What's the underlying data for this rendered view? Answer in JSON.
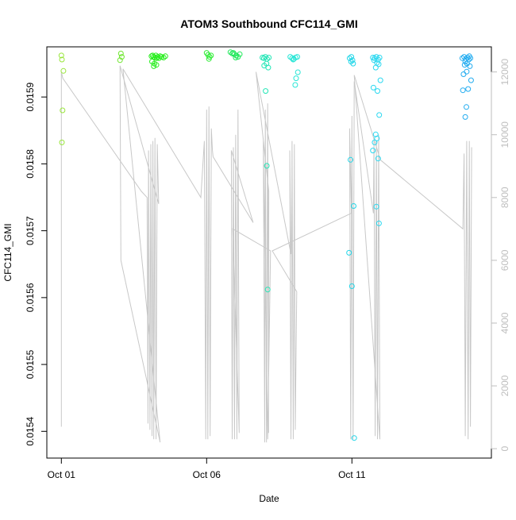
{
  "chart_data": {
    "type": "scatter",
    "title": "ATOM3 Southbound CFC114_GMI",
    "xlabel": "Date",
    "ylabel": "CFC114_GMI",
    "x_ticks": [
      {
        "day": 1,
        "label": "Oct 01"
      },
      {
        "day": 6,
        "label": "Oct 06"
      },
      {
        "day": 11,
        "label": "Oct 11"
      }
    ],
    "xlim_days": [
      0.5,
      15.8
    ],
    "y_left": {
      "lim": [
        0.01536,
        0.015975
      ],
      "ticks": [
        0.0154,
        0.0155,
        0.0156,
        0.0157,
        0.0158,
        0.0159
      ],
      "tick_labels": [
        "0.0154",
        "0.0155",
        "0.0156",
        "0.0157",
        "0.0158",
        "0.0159"
      ]
    },
    "y_right": {
      "lim": [
        -300,
        12800
      ],
      "ticks": [
        0,
        2000,
        4000,
        6000,
        8000,
        10000,
        12000
      ],
      "tick_labels": [
        "0",
        "2000",
        "4000",
        "6000",
        "8000",
        "10000",
        "12000"
      ],
      "color": "#bebebe"
    },
    "grid": false,
    "point_series": [
      {
        "color": "#99e63b",
        "points": [
          [
            1.0,
            0.015962
          ],
          [
            1.02,
            0.015956
          ],
          [
            1.07,
            0.015939
          ],
          [
            1.04,
            0.01588
          ],
          [
            1.02,
            0.015832
          ]
        ]
      },
      {
        "color": "#6ee62e",
        "points": [
          [
            3.05,
            0.015965
          ],
          [
            3.08,
            0.01596
          ],
          [
            3.02,
            0.015955
          ]
        ]
      },
      {
        "color": "#29ee1f",
        "points": [
          [
            4.1,
            0.015961
          ],
          [
            4.14,
            0.015962
          ],
          [
            4.18,
            0.01596
          ],
          [
            4.22,
            0.015959
          ],
          [
            4.25,
            0.015962
          ],
          [
            4.28,
            0.015958
          ],
          [
            4.32,
            0.01596
          ],
          [
            4.36,
            0.015958
          ],
          [
            4.4,
            0.015961
          ],
          [
            4.45,
            0.01596
          ],
          [
            4.52,
            0.015959
          ],
          [
            4.58,
            0.015961
          ],
          [
            4.12,
            0.015953
          ],
          [
            4.2,
            0.01595
          ],
          [
            4.27,
            0.015948
          ],
          [
            4.18,
            0.015946
          ]
        ]
      },
      {
        "color": "#2eec35",
        "points": [
          [
            6.0,
            0.015966
          ],
          [
            6.05,
            0.015963
          ],
          [
            6.1,
            0.01596
          ],
          [
            6.15,
            0.015962
          ],
          [
            6.08,
            0.015957
          ]
        ]
      },
      {
        "color": "#20e85a",
        "points": [
          [
            6.82,
            0.015967
          ],
          [
            6.88,
            0.015965
          ],
          [
            6.95,
            0.015964
          ],
          [
            7.02,
            0.015962
          ],
          [
            7.08,
            0.01596
          ],
          [
            7.14,
            0.015964
          ],
          [
            6.92,
            0.015966
          ],
          [
            7.0,
            0.015959
          ]
        ]
      },
      {
        "color": "#23e6b6",
        "points": [
          [
            7.92,
            0.015959
          ],
          [
            7.97,
            0.015958
          ],
          [
            8.02,
            0.01596
          ],
          [
            8.08,
            0.015957
          ],
          [
            8.14,
            0.015959
          ],
          [
            8.06,
            0.01595
          ],
          [
            7.98,
            0.015947
          ],
          [
            8.12,
            0.015944
          ],
          [
            8.03,
            0.015909
          ],
          [
            8.07,
            0.015797
          ],
          [
            8.1,
            0.015612
          ]
        ]
      },
      {
        "color": "#29e6d6",
        "points": [
          [
            8.88,
            0.01596
          ],
          [
            8.94,
            0.015958
          ],
          [
            9.0,
            0.015957
          ],
          [
            9.06,
            0.015959
          ],
          [
            9.12,
            0.01596
          ],
          [
            8.98,
            0.015956
          ],
          [
            9.14,
            0.015937
          ],
          [
            9.08,
            0.015928
          ],
          [
            9.05,
            0.015918
          ]
        ]
      },
      {
        "color": "#22d6e8",
        "points": [
          [
            10.92,
            0.015958
          ],
          [
            10.98,
            0.01596
          ],
          [
            11.02,
            0.015955
          ],
          [
            10.97,
            0.015953
          ],
          [
            11.04,
            0.01595
          ],
          [
            10.95,
            0.015806
          ],
          [
            11.06,
            0.015737
          ],
          [
            10.9,
            0.015667
          ],
          [
            11.0,
            0.015617
          ],
          [
            11.08,
            0.01539
          ]
        ]
      },
      {
        "color": "#2ad8f0",
        "points": [
          [
            11.72,
            0.015959
          ],
          [
            11.78,
            0.015958
          ],
          [
            11.84,
            0.01596
          ],
          [
            11.9,
            0.015956
          ],
          [
            11.95,
            0.015959
          ],
          [
            11.76,
            0.015955
          ],
          [
            11.86,
            0.015951
          ],
          [
            11.92,
            0.015949
          ],
          [
            11.82,
            0.015944
          ],
          [
            11.98,
            0.015925
          ],
          [
            11.74,
            0.015914
          ],
          [
            11.88,
            0.015909
          ],
          [
            11.94,
            0.015873
          ],
          [
            11.82,
            0.015844
          ],
          [
            11.86,
            0.015838
          ],
          [
            11.78,
            0.015832
          ],
          [
            11.72,
            0.01582
          ],
          [
            11.9,
            0.015808
          ],
          [
            11.84,
            0.015736
          ],
          [
            11.93,
            0.015711
          ]
        ]
      },
      {
        "color": "#22acf0",
        "points": [
          [
            14.8,
            0.015958
          ],
          [
            14.86,
            0.01596
          ],
          [
            14.92,
            0.015957
          ],
          [
            14.98,
            0.015959
          ],
          [
            15.04,
            0.015961
          ],
          [
            15.08,
            0.015958
          ],
          [
            15.02,
            0.015956
          ],
          [
            14.9,
            0.015953
          ],
          [
            14.96,
            0.01595
          ],
          [
            14.88,
            0.015948
          ],
          [
            15.06,
            0.015946
          ],
          [
            14.95,
            0.015938
          ],
          [
            14.84,
            0.015934
          ],
          [
            15.1,
            0.015925
          ],
          [
            15.0,
            0.015912
          ],
          [
            14.82,
            0.01591
          ],
          [
            14.94,
            0.015885
          ],
          [
            14.9,
            0.01587
          ]
        ]
      }
    ],
    "altitude_series": {
      "name": "altitude",
      "color": "#c8c8c8",
      "points": [
        [
          1.0,
          700
        ],
        [
          1.0,
          12000
        ],
        [
          1.05,
          11800
        ],
        [
          3.75,
          8200
        ],
        [
          3.95,
          8000
        ],
        [
          3.98,
          800
        ],
        [
          4.0,
          9500
        ],
        [
          4.05,
          600
        ],
        [
          4.08,
          9700
        ],
        [
          4.12,
          400
        ],
        [
          4.15,
          9800
        ],
        [
          4.18,
          300
        ],
        [
          4.22,
          9900
        ],
        [
          4.26,
          300
        ],
        [
          4.3,
          9700
        ],
        [
          4.35,
          7800
        ],
        [
          3.02,
          12200
        ],
        [
          3.05,
          6000
        ],
        [
          4.4,
          200
        ],
        [
          3.12,
          12100
        ],
        [
          5.8,
          8000
        ],
        [
          5.92,
          9800
        ],
        [
          5.97,
          300
        ],
        [
          6.0,
          10800
        ],
        [
          6.04,
          300
        ],
        [
          6.08,
          10900
        ],
        [
          6.12,
          400
        ],
        [
          6.16,
          10200
        ],
        [
          6.2,
          9500
        ],
        [
          6.22,
          9300
        ],
        [
          7.6,
          7200
        ],
        [
          6.85,
          9500
        ],
        [
          6.88,
          300
        ],
        [
          6.92,
          9600
        ],
        [
          6.96,
          300
        ],
        [
          7.0,
          10000
        ],
        [
          7.04,
          300
        ],
        [
          7.08,
          10800
        ],
        [
          7.12,
          500
        ],
        [
          6.9,
          7000
        ],
        [
          8.2,
          6300
        ],
        [
          8.1,
          300
        ],
        [
          7.95,
          9800
        ],
        [
          8.0,
          200
        ],
        [
          8.02,
          10800
        ],
        [
          8.06,
          200
        ],
        [
          8.1,
          11000
        ],
        [
          8.13,
          500
        ],
        [
          8.14,
          8200
        ],
        [
          7.7,
          12000
        ],
        [
          8.9,
          6200
        ],
        [
          8.86,
          9500
        ],
        [
          8.9,
          300
        ],
        [
          8.94,
          9800
        ],
        [
          8.98,
          300
        ],
        [
          9.02,
          9700
        ],
        [
          9.05,
          600
        ],
        [
          9.1,
          5000
        ],
        [
          8.26,
          6300
        ],
        [
          10.98,
          7500
        ],
        [
          10.92,
          10200
        ],
        [
          10.96,
          300
        ],
        [
          11.0,
          10600
        ],
        [
          11.04,
          300
        ],
        [
          11.08,
          11700
        ],
        [
          11.74,
          7500
        ],
        [
          11.76,
          9800
        ],
        [
          11.8,
          400
        ],
        [
          11.84,
          9800
        ],
        [
          11.88,
          300
        ],
        [
          11.92,
          10000
        ],
        [
          11.96,
          300
        ],
        [
          11.08,
          11900
        ],
        [
          11.98,
          9200
        ],
        [
          14.82,
          7000
        ],
        [
          14.86,
          9400
        ],
        [
          14.9,
          400
        ],
        [
          14.95,
          9800
        ],
        [
          15.0,
          300
        ],
        [
          15.04,
          9800
        ],
        [
          15.08,
          700
        ],
        [
          15.12,
          9600
        ]
      ]
    }
  }
}
